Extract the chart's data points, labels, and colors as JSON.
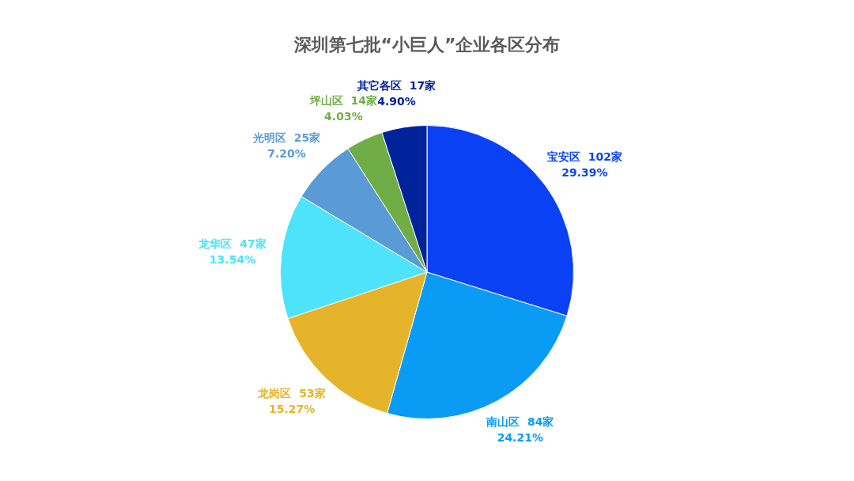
{
  "chart_data": {
    "type": "pie",
    "title": "深圳第七批“小巨人”企业各区分布",
    "categories": [
      "宝安区",
      "南山区",
      "龙岗区",
      "龙华区",
      "光明区",
      "坪山区",
      "其它各区"
    ],
    "values": [
      102,
      84,
      53,
      47,
      25,
      14,
      17
    ],
    "colors": [
      "#0a41f5",
      "#0a9cf5",
      "#e5b42a",
      "#4de3fa",
      "#5b9bd5",
      "#70ad47",
      "#00239c"
    ],
    "value_labels": [
      "102家\n29.39%",
      "84家\n24.21%",
      "53家\n15.27%",
      "47家\n13.54%",
      "25家\n7.20%",
      "14家\n4.03%",
      "17家\n4.90%"
    ],
    "legend": false
  }
}
